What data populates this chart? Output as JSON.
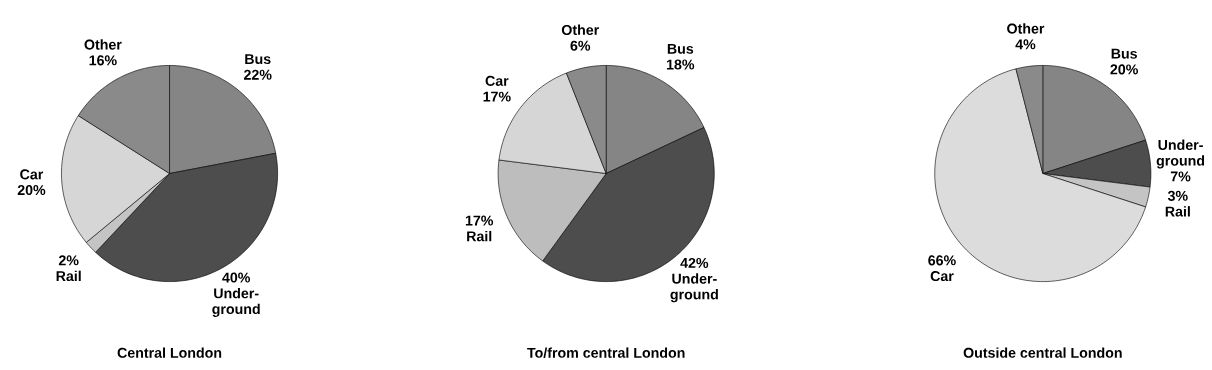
{
  "chart_data": [
    {
      "type": "pie",
      "title": "Central London",
      "categories": [
        "Bus",
        "Under-ground",
        "Rail",
        "Car",
        "Other"
      ],
      "values": [
        22,
        40,
        2,
        20,
        16
      ],
      "value_labels": [
        "22%",
        "40%",
        "2%",
        "20%",
        "16%"
      ],
      "colors": [
        "#858585",
        "#4d4d4d",
        "#c4c4c4",
        "#d6d6d6",
        "#8a8a8a"
      ]
    },
    {
      "type": "pie",
      "title": "To/from central London",
      "categories": [
        "Bus",
        "Under-ground",
        "Rail",
        "Car",
        "Other"
      ],
      "values": [
        18,
        42,
        17,
        17,
        6
      ],
      "value_labels": [
        "18%",
        "42%",
        "17%",
        "17%",
        "6%"
      ],
      "colors": [
        "#858585",
        "#4d4d4d",
        "#bdbdbd",
        "#d6d6d6",
        "#8a8a8a"
      ]
    },
    {
      "type": "pie",
      "title": "Outside central London",
      "categories": [
        "Bus",
        "Under-ground",
        "Rail",
        "Car",
        "Other"
      ],
      "values": [
        20,
        7,
        3,
        66,
        4
      ],
      "value_labels": [
        "20%",
        "7%",
        "3%",
        "66%",
        "4%"
      ],
      "colors": [
        "#858585",
        "#4d4d4d",
        "#c4c4c4",
        "#dcdcdc",
        "#8a8a8a"
      ]
    }
  ]
}
